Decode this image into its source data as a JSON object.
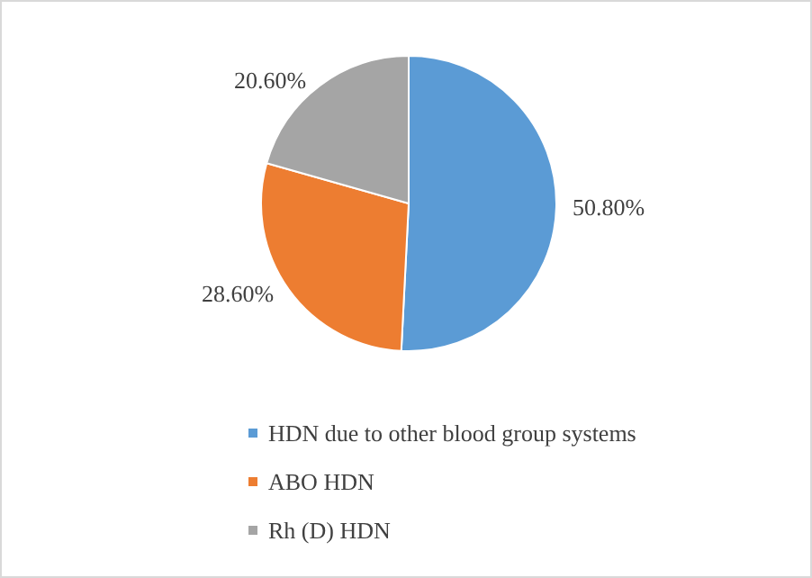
{
  "chart_data": {
    "type": "pie",
    "categories": [
      "HDN due to other blood group systems",
      "ABO HDN",
      "Rh (D) HDN"
    ],
    "values": [
      50.8,
      28.6,
      20.6
    ],
    "value_labels": [
      "50.80%",
      "28.60%",
      "20.60%"
    ],
    "colors": [
      "#5b9bd5",
      "#ed7d31",
      "#a5a5a5"
    ],
    "legend": "bottom"
  }
}
